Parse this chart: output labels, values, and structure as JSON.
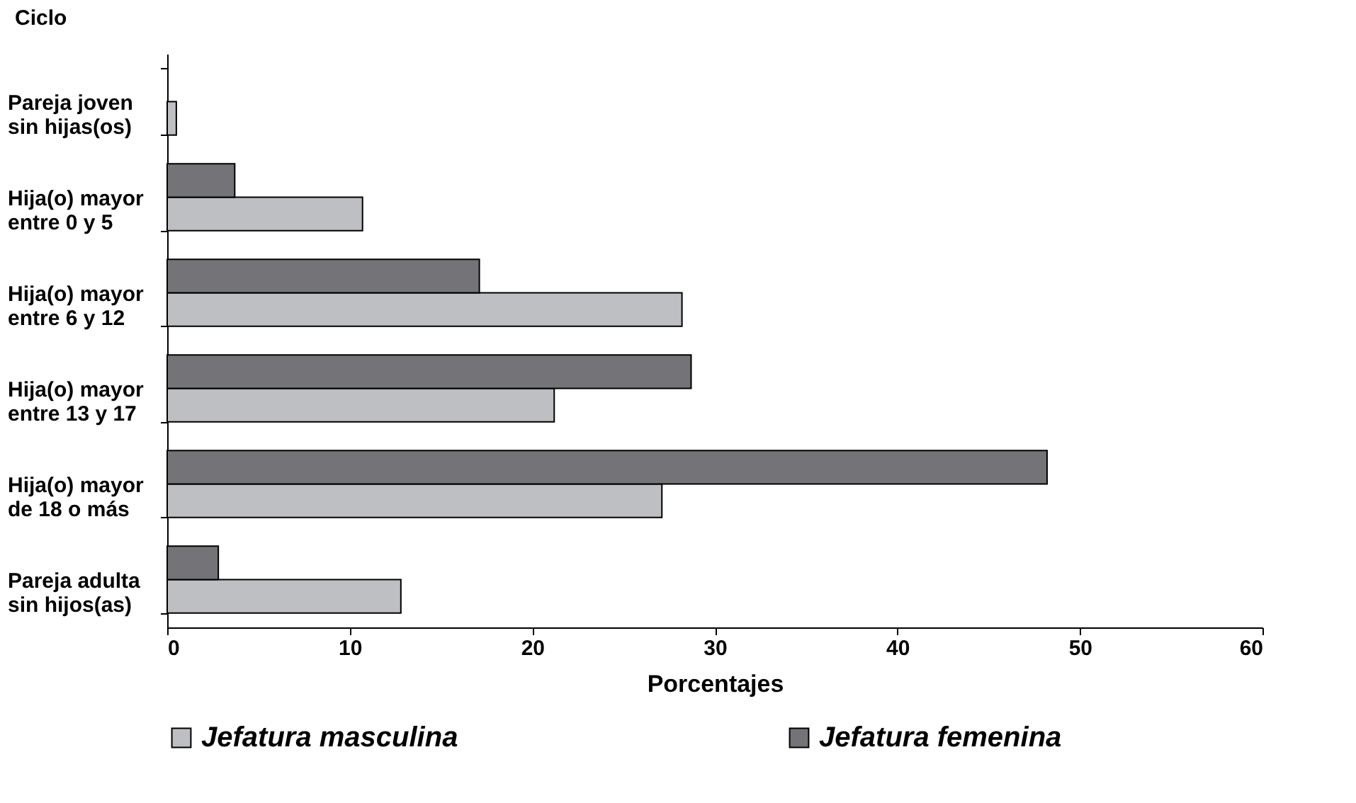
{
  "chart_data": {
    "type": "bar",
    "orientation": "horizontal",
    "ylabel": "Ciclo",
    "xlabel": "Porcentajes",
    "categories": [
      "Pareja joven\nsin hijas(os)",
      "Hija(o) mayor\nentre 0 y 5",
      "Hija(o) mayor\nentre 6 y 12",
      "Hija(o) mayor\nentre 13 y 17",
      "Hija(o) mayor\nde 18 o más",
      "Pareja adulta\nsin hijos(as)"
    ],
    "series": [
      {
        "name": "Jefatura masculina",
        "color": "#bebfc3",
        "values": [
          0.5,
          10.7,
          28.2,
          21.2,
          27.1,
          12.8
        ]
      },
      {
        "name": "Jefatura femenina",
        "color": "#737378",
        "values": [
          null,
          3.7,
          17.1,
          28.7,
          48.2,
          2.8
        ]
      }
    ],
    "xlim": [
      0,
      60
    ],
    "xticks": [
      0,
      10,
      20,
      30,
      40,
      50,
      60
    ],
    "grid": false,
    "legend": "bottom"
  }
}
